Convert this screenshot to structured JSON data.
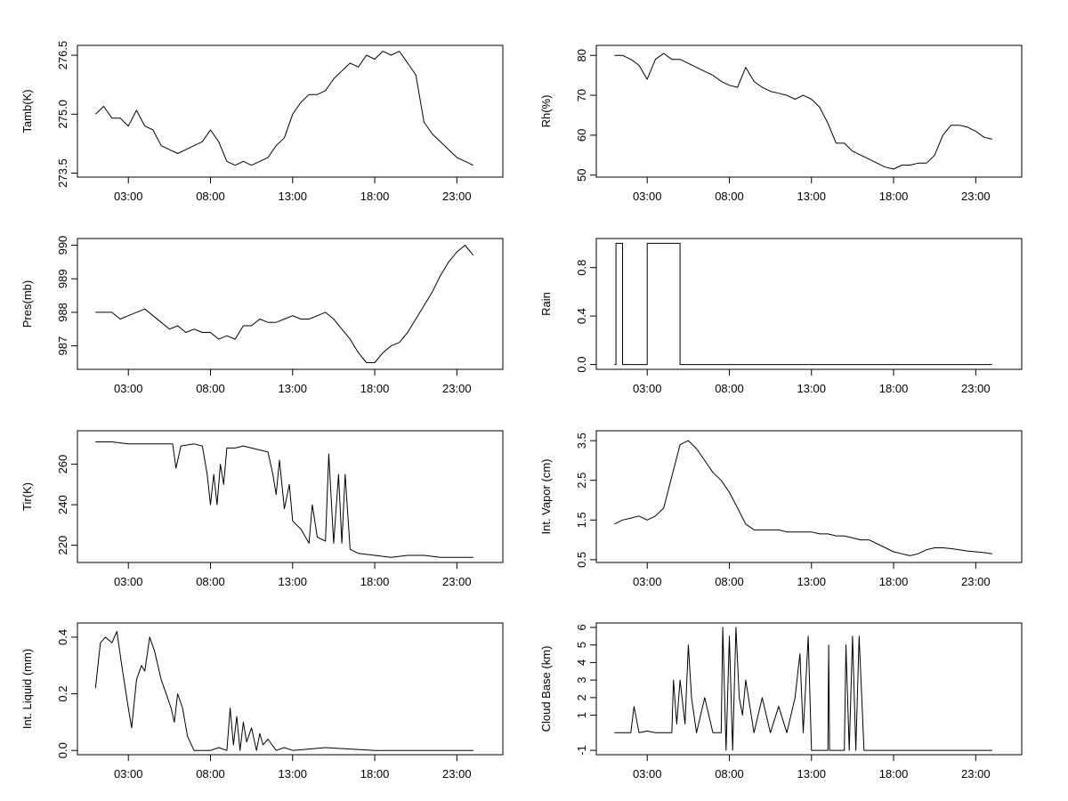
{
  "chart_data": [
    {
      "type": "line",
      "ylabel": "Tamb(K)",
      "xticks": [
        "03:00",
        "08:00",
        "13:00",
        "18:00",
        "23:00"
      ],
      "yticks": [
        "273.5",
        "275.0",
        "276.5"
      ],
      "ylim": [
        273.4,
        276.75
      ],
      "xlim": [
        -0.1,
        25.8
      ],
      "series": [
        {
          "x": [
            1.0,
            1.5,
            2.0,
            2.5,
            3.0,
            3.5,
            4.0,
            4.5,
            5.0,
            5.5,
            6.0,
            6.5,
            7.0,
            7.5,
            8.0,
            8.5,
            9.0,
            9.5,
            10.0,
            10.5,
            11.0,
            11.5,
            12.0,
            12.5,
            13.0,
            13.5,
            14.0,
            14.5,
            15.0,
            15.5,
            16.0,
            16.5,
            17.0,
            17.5,
            18.0,
            18.5,
            19.0,
            19.5,
            20.0,
            20.5,
            21.0,
            21.5,
            22.0,
            22.5,
            23.0,
            23.5,
            24.0
          ],
          "y": [
            275.0,
            275.2,
            274.9,
            274.9,
            274.7,
            275.1,
            274.7,
            274.6,
            274.2,
            274.1,
            274.0,
            274.1,
            274.2,
            274.3,
            274.6,
            274.3,
            273.8,
            273.7,
            273.8,
            273.7,
            273.8,
            273.9,
            274.2,
            274.4,
            275.0,
            275.3,
            275.5,
            275.5,
            275.6,
            275.9,
            276.1,
            276.3,
            276.2,
            276.5,
            276.4,
            276.6,
            276.5,
            276.6,
            276.3,
            276.0,
            274.8,
            274.5,
            274.3,
            274.1,
            273.9,
            273.8,
            273.7
          ]
        }
      ]
    },
    {
      "type": "line",
      "ylabel": "Rh(%)",
      "xticks": [
        "03:00",
        "08:00",
        "13:00",
        "18:00",
        "23:00"
      ],
      "yticks": [
        "50",
        "60",
        "70",
        "80"
      ],
      "ylim": [
        49.5,
        82.5
      ],
      "xlim": [
        -0.1,
        25.8
      ],
      "series": [
        {
          "x": [
            1.0,
            1.5,
            2.0,
            2.5,
            3.0,
            3.5,
            4.0,
            4.5,
            5.0,
            5.5,
            6.0,
            6.5,
            7.0,
            7.5,
            8.0,
            8.5,
            9.0,
            9.5,
            10.0,
            10.5,
            11.0,
            11.5,
            12.0,
            12.5,
            13.0,
            13.5,
            14.0,
            14.5,
            15.0,
            15.5,
            16.0,
            16.5,
            17.0,
            17.5,
            18.0,
            18.5,
            19.0,
            19.5,
            20.0,
            20.5,
            21.0,
            21.5,
            22.0,
            22.5,
            23.0,
            23.5,
            24.0
          ],
          "y": [
            80.0,
            80.0,
            79.0,
            77.5,
            74.0,
            79.0,
            80.5,
            79.0,
            79.0,
            78.0,
            77.0,
            76.0,
            75.0,
            73.5,
            72.5,
            72.0,
            77.0,
            73.5,
            72.0,
            71.0,
            70.5,
            70.0,
            69.0,
            70.0,
            69.0,
            67.0,
            63.0,
            58.0,
            58.0,
            56.0,
            55.0,
            54.0,
            53.0,
            52.0,
            51.5,
            52.5,
            52.5,
            53.0,
            53.0,
            55.0,
            60.0,
            62.5,
            62.5,
            62.0,
            61.0,
            59.5,
            59.0
          ]
        }
      ]
    },
    {
      "type": "line",
      "ylabel": "Pres(mb)",
      "xticks": [
        "03:00",
        "08:00",
        "13:00",
        "18:00",
        "23:00"
      ],
      "yticks": [
        "987",
        "988",
        "989",
        "990"
      ],
      "ylim": [
        986.3,
        990.2
      ],
      "xlim": [
        -0.1,
        25.8
      ],
      "series": [
        {
          "x": [
            1.0,
            1.5,
            2.0,
            2.5,
            3.0,
            3.5,
            4.0,
            4.5,
            5.0,
            5.5,
            6.0,
            6.5,
            7.0,
            7.5,
            8.0,
            8.5,
            9.0,
            9.5,
            10.0,
            10.5,
            11.0,
            11.5,
            12.0,
            12.5,
            13.0,
            13.5,
            14.0,
            14.5,
            15.0,
            15.5,
            16.0,
            16.5,
            17.0,
            17.5,
            18.0,
            18.5,
            19.0,
            19.5,
            20.0,
            20.5,
            21.0,
            21.5,
            22.0,
            22.5,
            23.0,
            23.5,
            24.0
          ],
          "y": [
            988.0,
            988.0,
            988.0,
            987.8,
            987.9,
            988.0,
            988.1,
            987.9,
            987.7,
            987.5,
            987.6,
            987.4,
            987.5,
            987.4,
            987.4,
            987.2,
            987.3,
            987.2,
            987.6,
            987.6,
            987.8,
            987.7,
            987.7,
            987.8,
            987.9,
            987.8,
            987.8,
            987.9,
            988.0,
            987.8,
            987.5,
            987.2,
            986.8,
            986.5,
            986.5,
            986.8,
            987.0,
            987.1,
            987.4,
            987.8,
            988.2,
            988.6,
            989.1,
            989.5,
            989.8,
            990.0,
            989.7
          ]
        }
      ]
    },
    {
      "type": "line",
      "ylabel": "Rain",
      "xticks": [
        "03:00",
        "08:00",
        "13:00",
        "18:00",
        "23:00"
      ],
      "yticks": [
        "0.0",
        "0.4",
        "0.8"
      ],
      "ylim": [
        -0.04,
        1.04
      ],
      "xlim": [
        -0.1,
        25.8
      ],
      "series": [
        {
          "x": [
            1.0,
            1.1,
            1.1,
            1.5,
            1.5,
            3.0,
            3.0,
            5.0,
            5.0,
            24.0
          ],
          "y": [
            0,
            0,
            1,
            1,
            0,
            0,
            1,
            1,
            0,
            0
          ]
        }
      ]
    },
    {
      "type": "line",
      "ylabel": "Tir(K)",
      "xticks": [
        "03:00",
        "08:00",
        "13:00",
        "18:00",
        "23:00"
      ],
      "yticks": [
        "220",
        "240",
        "260"
      ],
      "ylim": [
        211.5,
        276.5
      ],
      "xlim": [
        -0.1,
        25.8
      ],
      "series": [
        {
          "x": [
            1.0,
            2.0,
            3.0,
            4.0,
            5.0,
            5.7,
            5.9,
            6.2,
            7.0,
            7.5,
            7.8,
            8.0,
            8.2,
            8.4,
            8.6,
            8.8,
            9.0,
            9.5,
            10.0,
            10.5,
            11.0,
            11.5,
            11.8,
            12.0,
            12.2,
            12.5,
            12.8,
            13.0,
            13.5,
            14.0,
            14.2,
            14.5,
            15.0,
            15.2,
            15.5,
            15.8,
            16.0,
            16.2,
            16.5,
            17.0,
            18.0,
            19.0,
            20.0,
            21.0,
            22.0,
            23.0,
            24.0
          ],
          "y": [
            271,
            271,
            270,
            270,
            270,
            270,
            258,
            269,
            270,
            269,
            255,
            240,
            255,
            240,
            260,
            250,
            268,
            268,
            269,
            268,
            267,
            266,
            255,
            245,
            262,
            238,
            250,
            232,
            228,
            221,
            240,
            224,
            222,
            265,
            221,
            255,
            221,
            255,
            218,
            216,
            215,
            214,
            215,
            215,
            214,
            214,
            214
          ]
        }
      ]
    },
    {
      "type": "line",
      "ylabel": "Int. Vapor (cm)",
      "xticks": [
        "03:00",
        "08:00",
        "13:00",
        "18:00",
        "23:00"
      ],
      "yticks": [
        "0.5",
        "1.5",
        "2.5",
        "3.5"
      ],
      "ylim": [
        0.43,
        3.75
      ],
      "xlim": [
        -0.1,
        25.8
      ],
      "series": [
        {
          "x": [
            1.0,
            1.5,
            2.0,
            2.5,
            3.0,
            3.5,
            4.0,
            4.5,
            5.0,
            5.5,
            6.0,
            6.5,
            7.0,
            7.5,
            8.0,
            8.5,
            9.0,
            9.5,
            10.0,
            10.5,
            11.0,
            11.5,
            12.0,
            12.5,
            13.0,
            13.5,
            14.0,
            14.5,
            15.0,
            15.5,
            16.0,
            16.5,
            17.0,
            17.5,
            18.0,
            18.5,
            19.0,
            19.5,
            20.0,
            20.5,
            21.0,
            21.5,
            22.0,
            22.5,
            23.0,
            23.5,
            24.0
          ],
          "y": [
            1.4,
            1.5,
            1.55,
            1.6,
            1.5,
            1.6,
            1.8,
            2.6,
            3.4,
            3.5,
            3.3,
            3.0,
            2.7,
            2.5,
            2.2,
            1.8,
            1.4,
            1.25,
            1.25,
            1.25,
            1.25,
            1.2,
            1.2,
            1.2,
            1.2,
            1.15,
            1.15,
            1.1,
            1.1,
            1.05,
            1.0,
            1.0,
            0.9,
            0.8,
            0.7,
            0.65,
            0.6,
            0.65,
            0.75,
            0.8,
            0.8,
            0.78,
            0.75,
            0.72,
            0.7,
            0.68,
            0.65
          ]
        }
      ]
    },
    {
      "type": "line",
      "ylabel": "Int. Liquid (mm)",
      "xticks": [
        "03:00",
        "08:00",
        "13:00",
        "18:00",
        "23:00"
      ],
      "yticks": [
        "0.0",
        "0.2",
        "0.4"
      ],
      "ylim": [
        -0.015,
        0.45
      ],
      "xlim": [
        -0.1,
        25.8
      ],
      "series": [
        {
          "x": [
            1.0,
            1.3,
            1.6,
            2.0,
            2.3,
            2.6,
            3.0,
            3.2,
            3.5,
            3.8,
            4.0,
            4.3,
            4.6,
            5.0,
            5.3,
            5.6,
            5.8,
            6.0,
            6.3,
            6.6,
            7.0,
            7.5,
            8.0,
            8.5,
            9.0,
            9.2,
            9.4,
            9.6,
            9.8,
            10.0,
            10.2,
            10.5,
            10.8,
            11.0,
            11.2,
            11.5,
            12.0,
            12.5,
            13.0,
            15.0,
            18.0,
            24.0
          ],
          "y": [
            0.22,
            0.38,
            0.4,
            0.38,
            0.42,
            0.3,
            0.15,
            0.08,
            0.25,
            0.3,
            0.28,
            0.4,
            0.35,
            0.25,
            0.2,
            0.15,
            0.1,
            0.2,
            0.15,
            0.05,
            0.0,
            0.0,
            0.0,
            0.01,
            0.0,
            0.15,
            0.02,
            0.12,
            0.0,
            0.1,
            0.03,
            0.08,
            0.0,
            0.06,
            0.02,
            0.04,
            0.0,
            0.01,
            0.0,
            0.01,
            0.0,
            0.0
          ]
        }
      ]
    },
    {
      "type": "line",
      "ylabel": "Cloud Base (km)",
      "xticks": [
        "03:00",
        "08:00",
        "13:00",
        "18:00",
        "23:00"
      ],
      "yticks": [
        "-1",
        "1",
        "2",
        "3",
        "4",
        "5",
        "6"
      ],
      "ylim": [
        -1.25,
        6.25
      ],
      "xlim": [
        -0.1,
        25.8
      ],
      "series": [
        {
          "x": [
            1.0,
            2.0,
            2.2,
            2.5,
            3.0,
            3.5,
            4.0,
            4.5,
            4.6,
            4.8,
            5.0,
            5.3,
            5.5,
            5.7,
            6.0,
            6.5,
            7.0,
            7.5,
            7.6,
            7.8,
            8.0,
            8.2,
            8.4,
            8.6,
            8.8,
            9.0,
            9.5,
            10.0,
            10.5,
            11.0,
            11.5,
            12.0,
            12.3,
            12.5,
            12.8,
            13.0,
            13.5,
            14.0,
            14.05,
            14.1,
            14.5,
            15.0,
            15.1,
            15.3,
            15.5,
            15.7,
            15.9,
            16.2,
            16.5,
            17.0,
            18.0,
            20.0,
            24.0
          ],
          "y": [
            0,
            0,
            1.5,
            0,
            0.1,
            0,
            0,
            0,
            3.0,
            0.5,
            3.0,
            0.5,
            5.0,
            2.0,
            0,
            2.0,
            0,
            0,
            6.0,
            -1,
            5.5,
            -1,
            6.0,
            2.0,
            1.0,
            3.0,
            0,
            2.0,
            0,
            1.5,
            0,
            2.0,
            4.5,
            0,
            5.5,
            -1,
            -1,
            -1,
            5.0,
            -1,
            -1,
            -1,
            5.0,
            -1,
            5.5,
            -1,
            5.5,
            -1,
            -1,
            -1,
            -1,
            -1,
            -1
          ]
        }
      ]
    }
  ]
}
